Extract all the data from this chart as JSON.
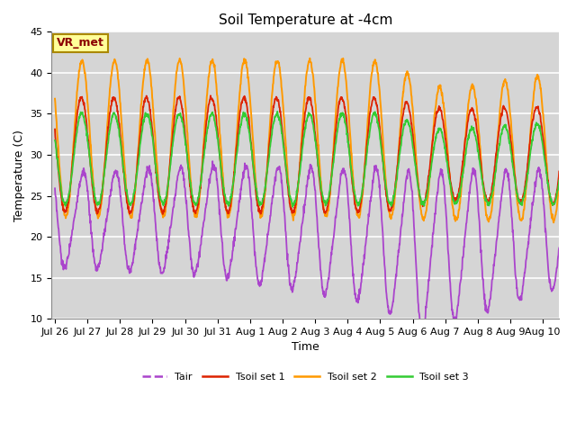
{
  "title": "Soil Temperature at -4cm",
  "xlabel": "Time",
  "ylabel": "Temperature (C)",
  "ylim": [
    10,
    45
  ],
  "background_color": "#d5d5d5",
  "plot_bg_color": "#d5d5d5",
  "grid_color": "white",
  "colors": {
    "Tair": "#aa44cc",
    "Tsoil1": "#dd2200",
    "Tsoil2": "#ff9900",
    "Tsoil3": "#33cc33"
  },
  "legend_labels": [
    "Tair",
    "Tsoil set 1",
    "Tsoil set 2",
    "Tsoil set 3"
  ],
  "annotation_text": "VR_met",
  "annotation_bg": "#ffff99",
  "annotation_border": "#aa8800",
  "tick_labels": [
    "Jul 26",
    "Jul 27",
    "Jul 28",
    "Jul 29",
    "Jul 30",
    "Jul 31",
    "Aug 1",
    "Aug 2",
    "Aug 3",
    "Aug 4",
    "Aug 5",
    "Aug 6",
    "Aug 7",
    "Aug 8",
    "Aug 9",
    "Aug 10"
  ],
  "tick_positions": [
    0,
    1,
    2,
    3,
    4,
    5,
    6,
    7,
    8,
    9,
    10,
    11,
    12,
    13,
    14,
    15
  ]
}
